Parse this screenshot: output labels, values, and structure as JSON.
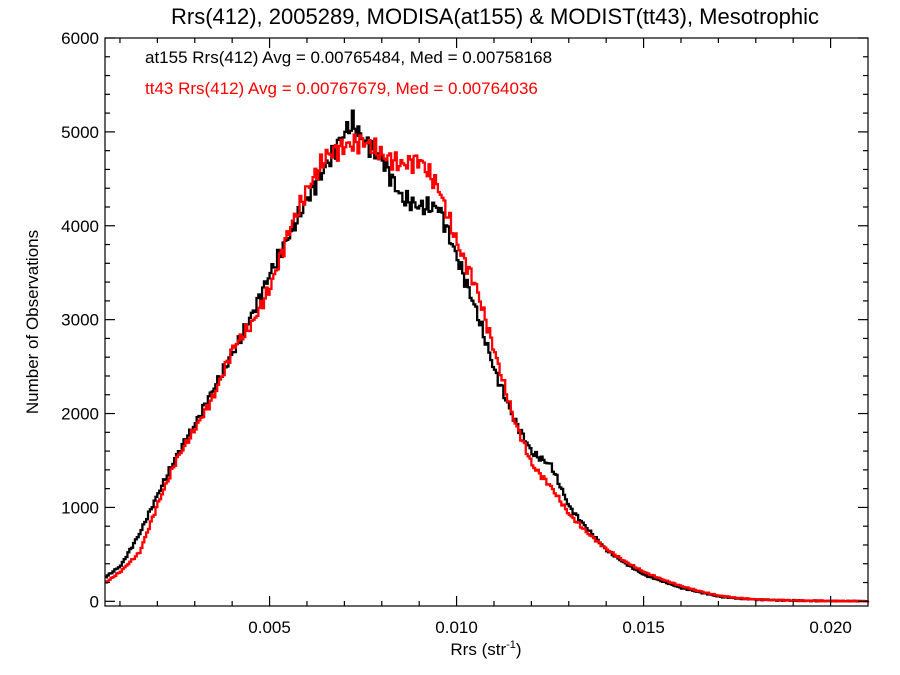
{
  "chart_data": {
    "type": "line",
    "title": "Rrs(412), 2005289, MODISA(at155) & MODIST(tt43), Mesotrophic",
    "xlabel_main": "Rrs (str",
    "xlabel_sup": "-1",
    "xlabel_end": ")",
    "ylabel": "Number of Observations",
    "xlim": [
      0.0006,
      0.021
    ],
    "ylim": [
      -50,
      6000
    ],
    "x_ticks": [
      0.005,
      0.01,
      0.015,
      0.02
    ],
    "x_tick_labels": [
      "0.005",
      "0.010",
      "0.015",
      "0.020"
    ],
    "y_ticks": [
      0,
      1000,
      2000,
      3000,
      4000,
      5000,
      6000
    ],
    "y_tick_labels": [
      "0",
      "1000",
      "2000",
      "3000",
      "4000",
      "5000",
      "6000"
    ],
    "grid": false,
    "legend_position": "top-left",
    "series": [
      {
        "name": "at155",
        "legend_text": "at155 Rrs(412) Avg = 0.00765484, Med = 0.00758168",
        "color": "#000000",
        "points": [
          [
            0.0006,
            260
          ],
          [
            0.001,
            380
          ],
          [
            0.0015,
            720
          ],
          [
            0.002,
            1150
          ],
          [
            0.0025,
            1560
          ],
          [
            0.003,
            1900
          ],
          [
            0.0035,
            2280
          ],
          [
            0.004,
            2650
          ],
          [
            0.0045,
            3050
          ],
          [
            0.005,
            3500
          ],
          [
            0.0055,
            3900
          ],
          [
            0.006,
            4300
          ],
          [
            0.0065,
            4650
          ],
          [
            0.007,
            5000
          ],
          [
            0.0072,
            5100
          ],
          [
            0.0075,
            4900
          ],
          [
            0.008,
            4700
          ],
          [
            0.0085,
            4300
          ],
          [
            0.009,
            4200
          ],
          [
            0.0095,
            4200
          ],
          [
            0.01,
            3650
          ],
          [
            0.0105,
            3100
          ],
          [
            0.011,
            2450
          ],
          [
            0.0115,
            1950
          ],
          [
            0.012,
            1580
          ],
          [
            0.0125,
            1450
          ],
          [
            0.013,
            1000
          ],
          [
            0.0135,
            760
          ],
          [
            0.014,
            540
          ],
          [
            0.0145,
            400
          ],
          [
            0.015,
            280
          ],
          [
            0.0155,
            210
          ],
          [
            0.016,
            140
          ],
          [
            0.0165,
            95
          ],
          [
            0.017,
            50
          ],
          [
            0.0175,
            30
          ],
          [
            0.018,
            18
          ],
          [
            0.0185,
            12
          ],
          [
            0.019,
            8
          ],
          [
            0.0195,
            5
          ],
          [
            0.02,
            2
          ],
          [
            0.0205,
            1
          ],
          [
            0.021,
            1
          ]
        ]
      },
      {
        "name": "tt43",
        "legend_text": "tt43 Rrs(412) Avg = 0.00767679, Med = 0.00764036",
        "color": "#ff0000",
        "points": [
          [
            0.0006,
            200
          ],
          [
            0.001,
            320
          ],
          [
            0.0015,
            520
          ],
          [
            0.002,
            1050
          ],
          [
            0.0025,
            1520
          ],
          [
            0.003,
            1850
          ],
          [
            0.0035,
            2200
          ],
          [
            0.004,
            2700
          ],
          [
            0.0045,
            2950
          ],
          [
            0.005,
            3350
          ],
          [
            0.0055,
            3950
          ],
          [
            0.006,
            4400
          ],
          [
            0.0065,
            4750
          ],
          [
            0.007,
            4850
          ],
          [
            0.0075,
            4900
          ],
          [
            0.008,
            4750
          ],
          [
            0.0085,
            4650
          ],
          [
            0.009,
            4700
          ],
          [
            0.0095,
            4400
          ],
          [
            0.01,
            3800
          ],
          [
            0.0105,
            3350
          ],
          [
            0.011,
            2650
          ],
          [
            0.0115,
            1950
          ],
          [
            0.012,
            1450
          ],
          [
            0.0125,
            1220
          ],
          [
            0.013,
            920
          ],
          [
            0.0135,
            720
          ],
          [
            0.014,
            550
          ],
          [
            0.0145,
            420
          ],
          [
            0.015,
            310
          ],
          [
            0.0155,
            230
          ],
          [
            0.016,
            160
          ],
          [
            0.0165,
            105
          ],
          [
            0.017,
            60
          ],
          [
            0.0175,
            35
          ],
          [
            0.018,
            20
          ],
          [
            0.0185,
            14
          ],
          [
            0.019,
            9
          ],
          [
            0.0195,
            6
          ],
          [
            0.02,
            3
          ],
          [
            0.0205,
            2
          ],
          [
            0.021,
            1
          ]
        ]
      }
    ]
  }
}
